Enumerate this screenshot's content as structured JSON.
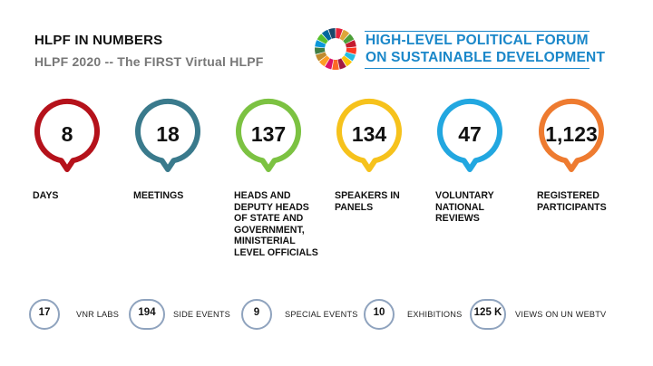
{
  "header": {
    "title": "HLPF IN NUMBERS",
    "subtitle": "HLPF 2020 -- The FIRST Virtual HLPF"
  },
  "logo": {
    "line1": "HIGH-LEVEL POLITICAL FORUM",
    "line2": "ON SUSTAINABLE DEVELOPMENT",
    "text_color": "#1a87c9"
  },
  "stats": [
    {
      "value": "8",
      "label": "DAYS",
      "color": "#b5121b"
    },
    {
      "value": "18",
      "label": "MEETINGS",
      "color": "#3a7a8c"
    },
    {
      "value": "137",
      "label": "HEADS AND DEPUTY HEADS OF STATE AND GOVERNMENT, MINISTERIAL LEVEL OFFICIALS",
      "color": "#7cc242"
    },
    {
      "value": "134",
      "label": "SPEAKERS IN PANELS",
      "color": "#f6c21c"
    },
    {
      "value": "47",
      "label": "VOLUNTARY NATIONAL REVIEWS",
      "color": "#22a7e0"
    },
    {
      "value": "1,123",
      "label": "REGISTERED PARTICIPANTS",
      "color": "#ee7b30"
    }
  ],
  "mini_stats": [
    {
      "value": "17",
      "label": "VNR LABS"
    },
    {
      "value": "194",
      "label": "SIDE EVENTS"
    },
    {
      "value": "9",
      "label": "SPECIAL EVENTS"
    },
    {
      "value": "10",
      "label": "EXHIBITIONS"
    },
    {
      "value": "125 K",
      "label": "VIEWS ON UN WEBTV"
    }
  ],
  "colors": {
    "pill_border": "#8fa3be",
    "sdg_wheel": [
      "#e5243b",
      "#dda63a",
      "#4c9f38",
      "#c5192d",
      "#ff3a21",
      "#26bde2",
      "#fcc30b",
      "#a21942",
      "#fd6925",
      "#dd1367",
      "#fd9d24",
      "#bf8b2e",
      "#3f7e44",
      "#0a97d9",
      "#56c02b",
      "#00689d",
      "#19486a"
    ]
  }
}
